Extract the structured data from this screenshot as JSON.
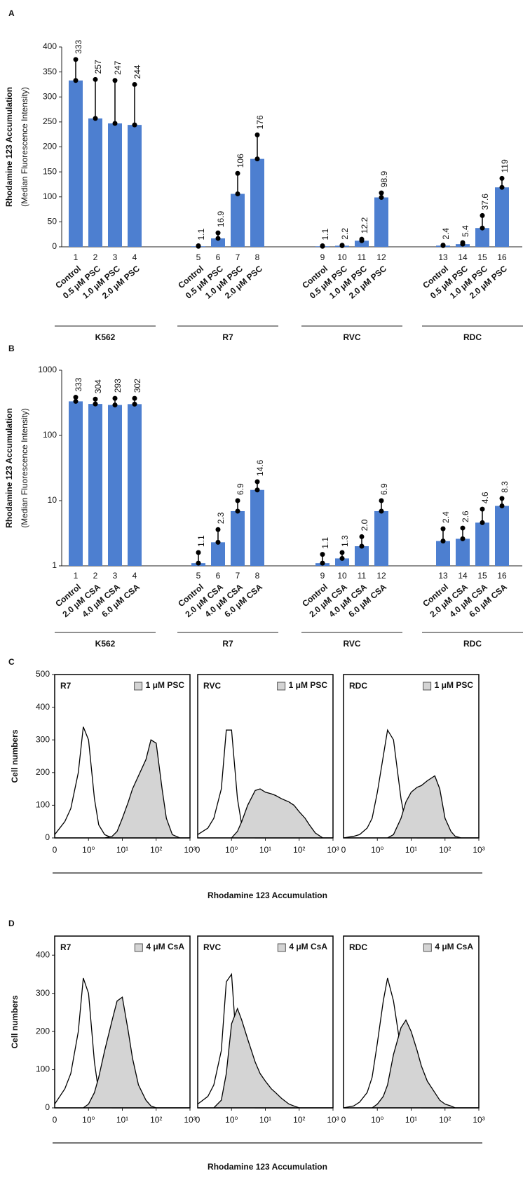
{
  "chart_data": [
    {
      "type": "bar",
      "panel": "A",
      "ylabel": "Rhodamine 123 Accumulation",
      "ylabel2": "(Median Fluorescence Intensity)",
      "categories": [
        "1",
        "2",
        "3",
        "4",
        "5",
        "6",
        "7",
        "8",
        "9",
        "10",
        "11",
        "12",
        "13",
        "14",
        "15",
        "16"
      ],
      "treatments": [
        "Control",
        "0.5 μM PSC",
        "1.0 μM PSC",
        "2.0 μM PSC",
        "Control",
        "0.5 μM PSC",
        "1.0 μM PSC",
        "2.0 μM PSC",
        "Control",
        "0.5 μM PSC",
        "1.0 μM PSC",
        "2.0 μM PSC",
        "Control",
        "0.5 μM PSC",
        "1.0 μM PSC",
        "2.0 μM PSC"
      ],
      "groups": [
        "K562",
        "R7",
        "RVC",
        "RDC"
      ],
      "values": [
        333,
        257,
        247,
        244,
        1.1,
        16.9,
        106,
        176,
        1.1,
        2.2,
        12.2,
        98.9,
        2.4,
        5.4,
        37.6,
        119
      ],
      "errors": [
        42,
        78,
        86,
        81,
        1,
        11,
        41,
        48,
        1,
        1,
        3,
        9,
        1,
        3,
        25,
        18
      ],
      "color": "#4d7fd0",
      "ylim": [
        0,
        400
      ],
      "yticks": [
        0,
        50,
        100,
        150,
        200,
        250,
        300,
        350,
        400
      ]
    },
    {
      "type": "bar",
      "panel": "B",
      "ylabel": "Rhodamine 123 Accumulation",
      "ylabel2": "(Median Fluorescence Intensity)",
      "categories": [
        "1",
        "2",
        "3",
        "4",
        "5",
        "6",
        "7",
        "8",
        "9",
        "10",
        "11",
        "12",
        "13",
        "14",
        "15",
        "16"
      ],
      "treatments": [
        "Control",
        "2.0 μM CSA",
        "4.0 μM CSA",
        "6.0 μM CSA",
        "Control",
        "2.0 μM CSA",
        "4.0 μM CSA",
        "6.0 μM CSA",
        "Control",
        "2.0 μM CSA",
        "4.0 μM CSA",
        "6.0 μM CSA",
        "Control",
        "2.0 μM CSA",
        "4.0 μM CSA",
        "6.0 μM CSA"
      ],
      "groups": [
        "K562",
        "R7",
        "RVC",
        "RDC"
      ],
      "values": [
        333,
        304,
        293,
        302,
        1.1,
        2.3,
        6.9,
        14.6,
        1.1,
        1.3,
        2,
        6.9,
        2.4,
        2.6,
        4.6,
        8.3
      ],
      "value_labels": [
        "333",
        "304",
        "293",
        "302",
        "1.1",
        "2.3",
        "6.9",
        "14.6",
        "1.1",
        "1.3",
        "2.0",
        "6.9",
        "2.4",
        "2.6",
        "4.6",
        "8.3"
      ],
      "errors": [
        52,
        56,
        77,
        68,
        0.5,
        1.3,
        3.1,
        4.9,
        0.4,
        0.3,
        0.8,
        3.1,
        1.3,
        1.2,
        2.8,
        2.5
      ],
      "color": "#4d7fd0",
      "ylog": true,
      "ylim": [
        1,
        1000
      ],
      "yticks": [
        1,
        10,
        100,
        1000
      ]
    },
    {
      "type": "area",
      "panel": "C",
      "ylabel": "Cell numbers",
      "xlabel": "Rhodamine 123 Accumulation",
      "x": [
        0.1,
        0.2,
        0.3,
        0.5,
        0.7,
        1,
        1.5,
        2,
        3,
        5,
        7,
        10,
        15,
        20,
        30,
        50,
        70,
        100,
        150,
        200,
        300,
        500,
        700,
        1000
      ],
      "xlog": true,
      "xlim": [
        0.1,
        1000
      ],
      "x_origin_label": "0",
      "xticks": [
        {
          "value": 1,
          "label": "10⁰"
        },
        {
          "value": 10,
          "label": "10¹"
        },
        {
          "value": 100,
          "label": "10²"
        },
        {
          "value": 1000,
          "label": "10³"
        }
      ],
      "ylim": [
        0,
        500
      ],
      "yticks": [
        0,
        100,
        200,
        300,
        400,
        500
      ],
      "subplots": [
        {
          "title": "R7",
          "series": [
            {
              "color": "#000000",
              "values": [
                10,
                50,
                90,
                200,
                340,
                300,
                120,
                40,
                10,
                0,
                0,
                0,
                0,
                0,
                0,
                0,
                0,
                0,
                0,
                0,
                0,
                0,
                0,
                0
              ]
            },
            {
              "name": "1 μM PSC",
              "color": "#d4d4d4",
              "filled": true,
              "values": [
                0,
                0,
                0,
                0,
                0,
                0,
                0,
                0,
                0,
                5,
                20,
                60,
                110,
                150,
                190,
                240,
                300,
                290,
                150,
                60,
                10,
                0,
                0,
                0
              ]
            }
          ]
        },
        {
          "title": "RVC",
          "series": [
            {
              "color": "#000000",
              "values": [
                10,
                30,
                60,
                150,
                330,
                330,
                120,
                40,
                10,
                0,
                0,
                0,
                0,
                0,
                0,
                0,
                0,
                0,
                0,
                0,
                0,
                0,
                0,
                0
              ]
            },
            {
              "name": "1 μM PSC",
              "color": "#d4d4d4",
              "filled": true,
              "values": [
                0,
                0,
                0,
                0,
                0,
                0,
                20,
                50,
                100,
                145,
                150,
                140,
                135,
                130,
                120,
                110,
                100,
                80,
                60,
                40,
                15,
                0,
                0,
                0
              ]
            }
          ]
        },
        {
          "title": "RDC",
          "series": [
            {
              "color": "#000000",
              "values": [
                0,
                5,
                10,
                30,
                60,
                140,
                250,
                330,
                300,
                120,
                40,
                10,
                0,
                0,
                0,
                0,
                0,
                0,
                0,
                0,
                0,
                0,
                0,
                0
              ]
            },
            {
              "name": "1 μM PSC",
              "color": "#d4d4d4",
              "filled": true,
              "values": [
                0,
                0,
                0,
                0,
                0,
                0,
                0,
                0,
                10,
                60,
                110,
                140,
                155,
                160,
                175,
                190,
                150,
                60,
                20,
                5,
                0,
                0,
                0,
                0
              ]
            }
          ]
        }
      ]
    },
    {
      "type": "area",
      "panel": "D",
      "ylabel": "Cell numbers",
      "xlabel": "Rhodamine 123 Accumulation",
      "x": [
        0.1,
        0.2,
        0.3,
        0.5,
        0.7,
        1,
        1.5,
        2,
        3,
        5,
        7,
        10,
        15,
        20,
        30,
        50,
        70,
        100,
        150,
        200,
        300,
        500,
        700,
        1000
      ],
      "xlog": true,
      "xlim": [
        0.1,
        1000
      ],
      "x_origin_label": "0",
      "xticks": [
        {
          "value": 1,
          "label": "10⁰"
        },
        {
          "value": 10,
          "label": "10¹"
        },
        {
          "value": 100,
          "label": "10²"
        },
        {
          "value": 1000,
          "label": "10³"
        }
      ],
      "ylim": [
        0,
        450
      ],
      "yticks": [
        0,
        100,
        200,
        300,
        400
      ],
      "subplots": [
        {
          "title": "R7",
          "series": [
            {
              "color": "#000000",
              "values": [
                10,
                50,
                90,
                200,
                340,
                300,
                120,
                40,
                10,
                0,
                0,
                0,
                0,
                0,
                0,
                0,
                0,
                0,
                0,
                0,
                0,
                0,
                0,
                0
              ]
            },
            {
              "name": "4 μM CsA",
              "color": "#d4d4d4",
              "filled": true,
              "values": [
                0,
                0,
                0,
                0,
                0,
                10,
                40,
                80,
                150,
                230,
                280,
                290,
                200,
                130,
                60,
                20,
                5,
                0,
                0,
                0,
                0,
                0,
                0,
                0
              ]
            }
          ]
        },
        {
          "title": "RVC",
          "series": [
            {
              "color": "#000000",
              "values": [
                10,
                30,
                60,
                150,
                330,
                350,
                130,
                40,
                10,
                0,
                0,
                0,
                0,
                0,
                0,
                0,
                0,
                0,
                0,
                0,
                0,
                0,
                0,
                0
              ]
            },
            {
              "name": "4 μM CsA",
              "color": "#d4d4d4",
              "filled": true,
              "values": [
                0,
                0,
                0,
                20,
                90,
                220,
                260,
                230,
                180,
                120,
                90,
                70,
                50,
                40,
                25,
                10,
                5,
                0,
                0,
                0,
                0,
                0,
                0,
                0
              ]
            }
          ]
        },
        {
          "title": "RDC",
          "series": [
            {
              "color": "#000000",
              "values": [
                0,
                5,
                15,
                40,
                80,
                170,
                280,
                340,
                280,
                150,
                60,
                20,
                5,
                0,
                0,
                0,
                0,
                0,
                0,
                0,
                0,
                0,
                0,
                0
              ]
            },
            {
              "name": "4 μM CsA",
              "color": "#d4d4d4",
              "filled": true,
              "values": [
                0,
                0,
                0,
                0,
                0,
                10,
                30,
                60,
                140,
                210,
                230,
                200,
                150,
                110,
                70,
                40,
                20,
                10,
                5,
                0,
                0,
                0,
                0,
                0
              ]
            }
          ]
        }
      ]
    }
  ]
}
